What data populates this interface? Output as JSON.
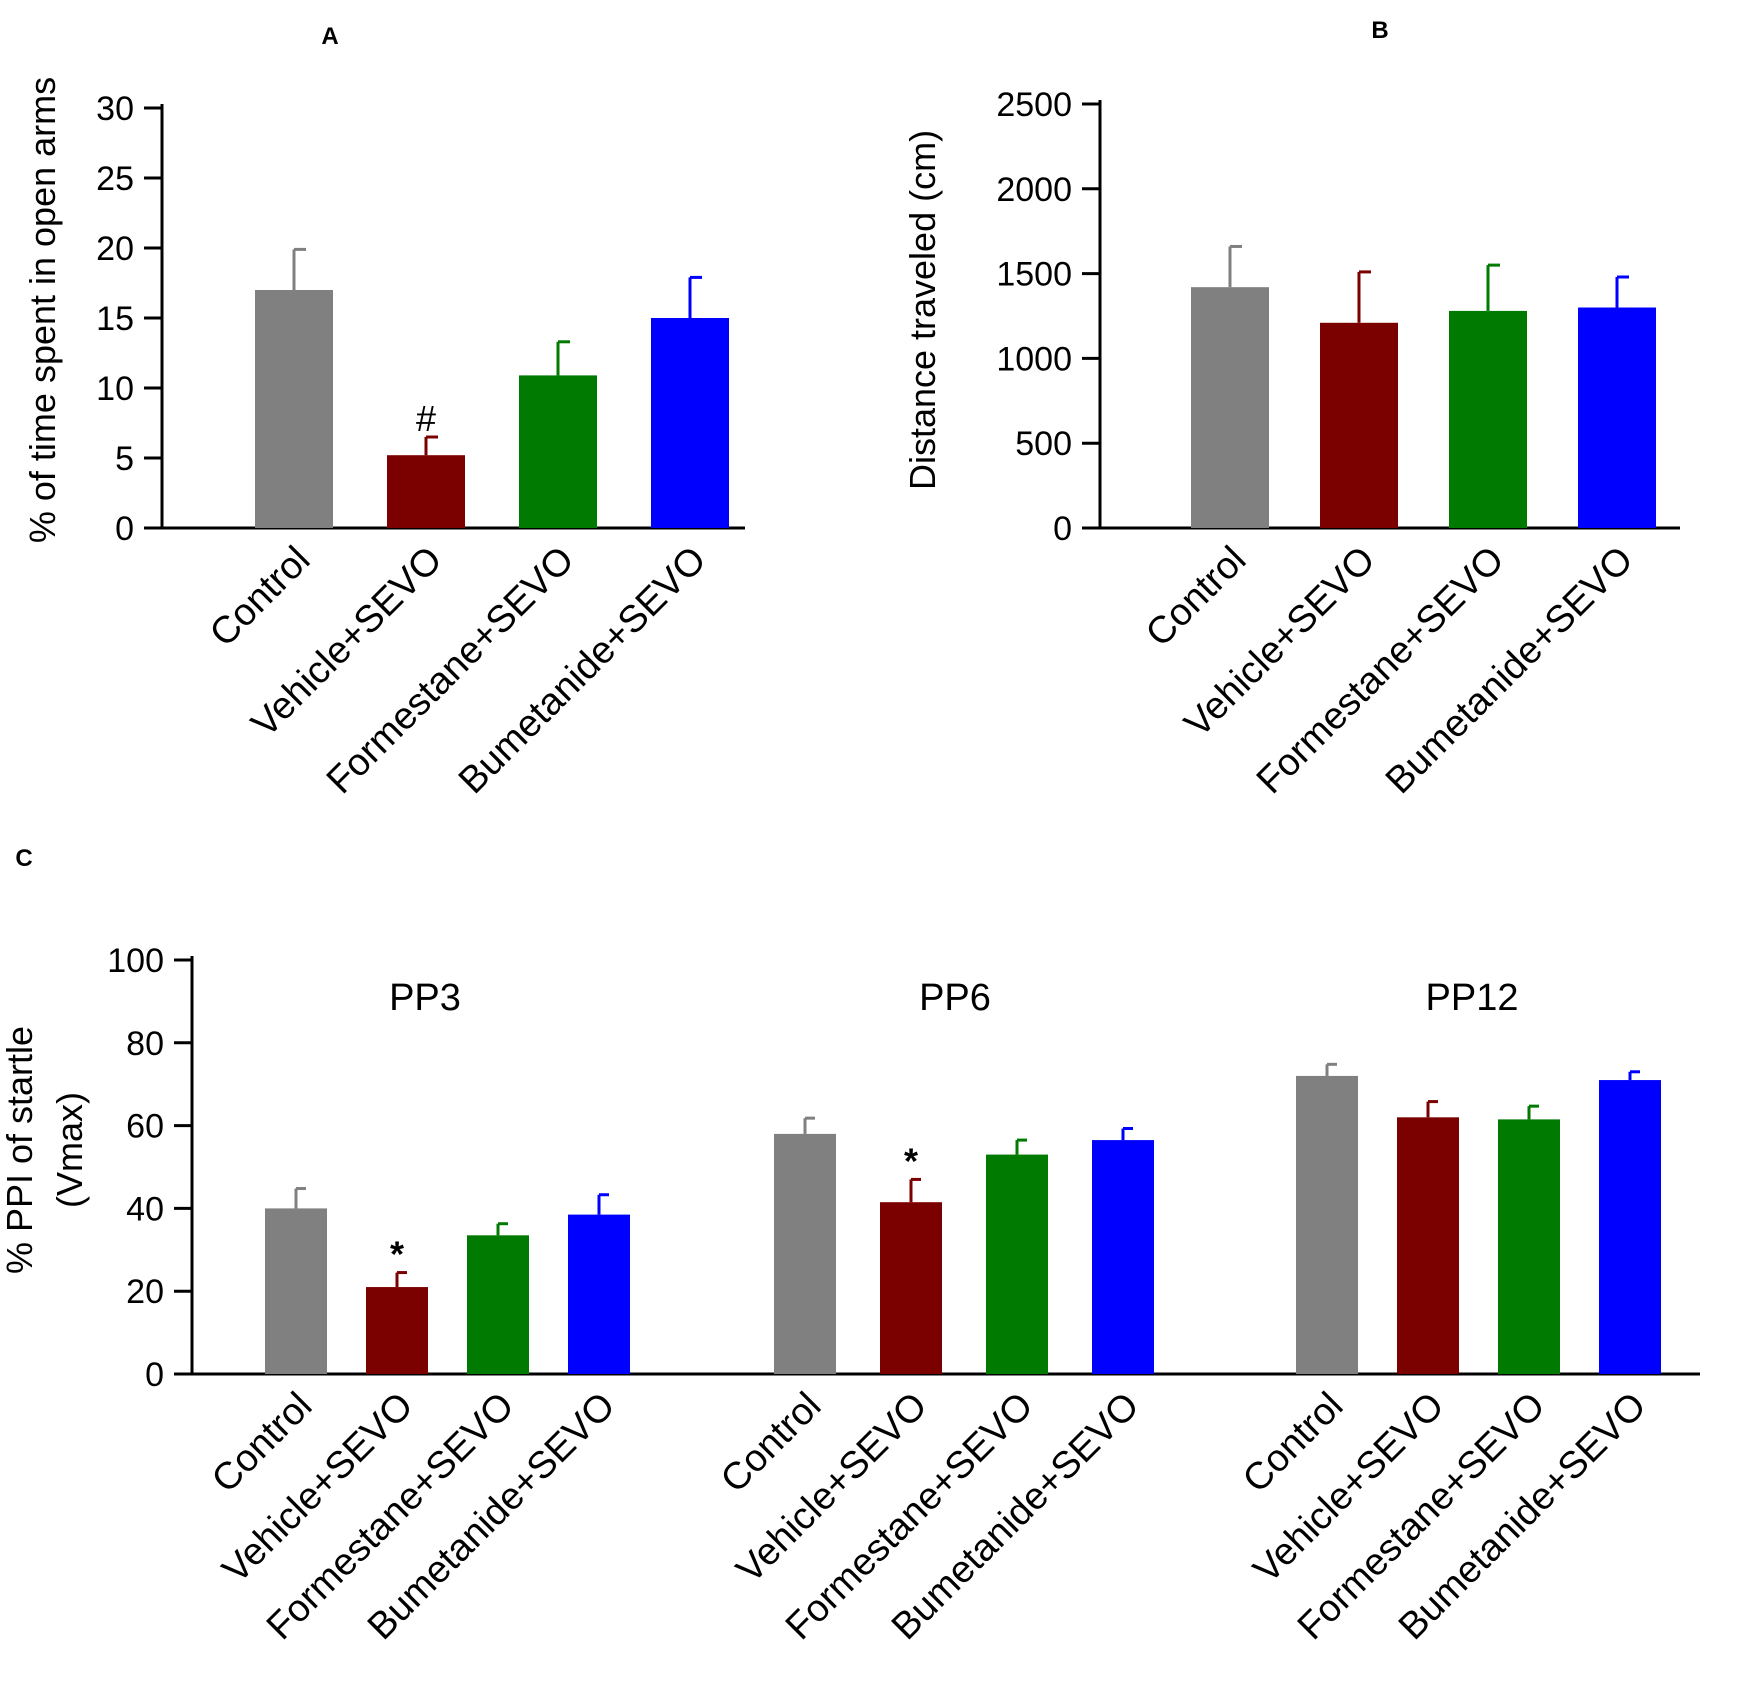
{
  "figure": {
    "colors": {
      "Control": "#808080",
      "Vehicle+SEVO": "#7b0000",
      "Formestane+SEVO": "#007a00",
      "Bumetanide+SEVO": "#0000ff"
    }
  },
  "chart_data": [
    {
      "id": "A",
      "type": "bar",
      "panel_label": "A",
      "ylabel": "% of time spent in open arms",
      "ylim": [
        0,
        30
      ],
      "yticks": [
        0,
        5,
        10,
        15,
        20,
        25,
        30
      ],
      "categories": [
        "Control",
        "Vehicle+SEVO",
        "Formestane+SEVO",
        "Bumetanide+SEVO"
      ],
      "values": [
        17,
        5.2,
        10.9,
        15
      ],
      "errors": [
        2.9,
        1.3,
        2.4,
        2.9
      ],
      "annotations": [
        "",
        "#",
        "",
        ""
      ]
    },
    {
      "id": "B",
      "type": "bar",
      "panel_label": "B",
      "ylabel": "Distance traveled (cm)",
      "ylim": [
        0,
        2500
      ],
      "yticks": [
        0,
        500,
        1000,
        1500,
        2000,
        2500
      ],
      "categories": [
        "Control",
        "Vehicle+SEVO",
        "Formestane+SEVO",
        "Bumetanide+SEVO"
      ],
      "values": [
        1420,
        1210,
        1280,
        1300
      ],
      "errors": [
        240,
        300,
        270,
        180
      ],
      "annotations": [
        "",
        "",
        "",
        ""
      ]
    },
    {
      "id": "C",
      "type": "bar",
      "panel_label": "C",
      "ylabel_lines": [
        "% PPI of startle",
        "(Vmax)"
      ],
      "ylim": [
        0,
        100
      ],
      "yticks": [
        0,
        20,
        40,
        60,
        80,
        100
      ],
      "groups": [
        {
          "name": "PP3",
          "categories": [
            "Control",
            "Vehicle+SEVO",
            "Formestane+SEVO",
            "Bumetanide+SEVO"
          ],
          "values": [
            40,
            21,
            33.5,
            38.5
          ],
          "errors": [
            4.8,
            3.5,
            2.8,
            4.8
          ],
          "annotations": [
            "",
            "*",
            "",
            ""
          ]
        },
        {
          "name": "PP6",
          "categories": [
            "Control",
            "Vehicle+SEVO",
            "Formestane+SEVO",
            "Bumetanide+SEVO"
          ],
          "values": [
            58,
            41.5,
            53,
            56.5
          ],
          "errors": [
            3.8,
            5.5,
            3.5,
            2.8
          ],
          "annotations": [
            "",
            "*",
            "",
            ""
          ]
        },
        {
          "name": "PP12",
          "categories": [
            "Control",
            "Vehicle+SEVO",
            "Formestane+SEVO",
            "Bumetanide+SEVO"
          ],
          "values": [
            72,
            62,
            61.5,
            71
          ],
          "errors": [
            2.8,
            3.8,
            3.2,
            2.0
          ],
          "annotations": [
            "",
            "",
            "",
            ""
          ]
        }
      ]
    }
  ]
}
